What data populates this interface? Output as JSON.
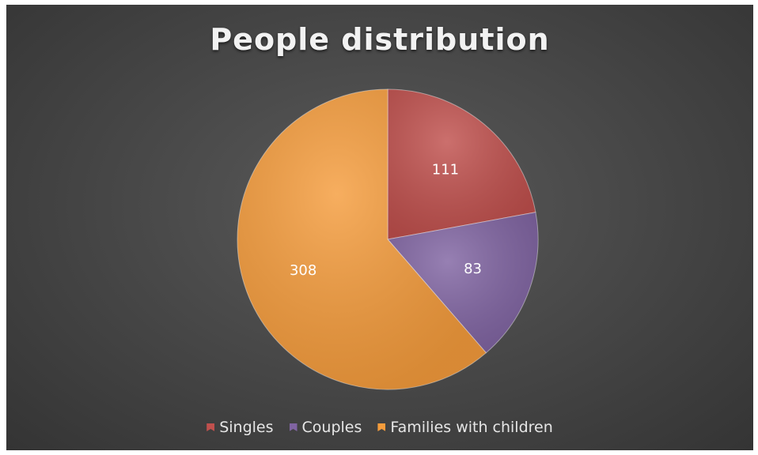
{
  "chart_data": {
    "type": "pie",
    "title": "People distribution",
    "categories": [
      "Singles",
      "Couples",
      "Families with children"
    ],
    "values": [
      111,
      83,
      308
    ],
    "colors": [
      "#c0504d",
      "#8064a2",
      "#f59c3c"
    ],
    "data_labels": [
      "111",
      "83",
      "308"
    ],
    "legend_position": "bottom"
  }
}
